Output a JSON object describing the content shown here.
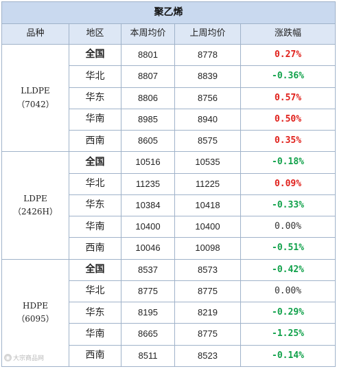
{
  "table": {
    "title": "聚乙烯",
    "headers": [
      "品种",
      "地区",
      "本周均价",
      "上周均价",
      "涨跌幅"
    ],
    "groups": [
      {
        "name": "LLDPE",
        "code": "（7042）",
        "rows": [
          {
            "region": "全国",
            "bold": true,
            "this_week": "8801",
            "last_week": "8778",
            "change": "0.27%",
            "trend": "up"
          },
          {
            "region": "华北",
            "bold": false,
            "this_week": "8807",
            "last_week": "8839",
            "change": "-0.36%",
            "trend": "down"
          },
          {
            "region": "华东",
            "bold": false,
            "this_week": "8806",
            "last_week": "8756",
            "change": "0.57%",
            "trend": "up"
          },
          {
            "region": "华南",
            "bold": false,
            "this_week": "8985",
            "last_week": "8940",
            "change": "0.50%",
            "trend": "up"
          },
          {
            "region": "西南",
            "bold": false,
            "this_week": "8605",
            "last_week": "8575",
            "change": "0.35%",
            "trend": "up"
          }
        ]
      },
      {
        "name": "LDPE",
        "code": "（2426H）",
        "rows": [
          {
            "region": "全国",
            "bold": true,
            "this_week": "10516",
            "last_week": "10535",
            "change": "-0.18%",
            "trend": "down"
          },
          {
            "region": "华北",
            "bold": false,
            "this_week": "11235",
            "last_week": "11225",
            "change": "0.09%",
            "trend": "up"
          },
          {
            "region": "华东",
            "bold": false,
            "this_week": "10384",
            "last_week": "10418",
            "change": "-0.33%",
            "trend": "down"
          },
          {
            "region": "华南",
            "bold": false,
            "this_week": "10400",
            "last_week": "10400",
            "change": "0.00%",
            "trend": "flat"
          },
          {
            "region": "西南",
            "bold": false,
            "this_week": "10046",
            "last_week": "10098",
            "change": "-0.51%",
            "trend": "down"
          }
        ]
      },
      {
        "name": "HDPE",
        "code": "（6095）",
        "rows": [
          {
            "region": "全国",
            "bold": true,
            "this_week": "8537",
            "last_week": "8573",
            "change": "-0.42%",
            "trend": "down"
          },
          {
            "region": "华北",
            "bold": false,
            "this_week": "8775",
            "last_week": "8775",
            "change": "0.00%",
            "trend": "flat"
          },
          {
            "region": "华东",
            "bold": false,
            "this_week": "8195",
            "last_week": "8219",
            "change": "-0.29%",
            "trend": "down"
          },
          {
            "region": "华南",
            "bold": false,
            "this_week": "8665",
            "last_week": "8775",
            "change": "-1.25%",
            "trend": "down"
          },
          {
            "region": "西南",
            "bold": false,
            "this_week": "8511",
            "last_week": "8523",
            "change": "-0.14%",
            "trend": "down"
          }
        ]
      }
    ]
  },
  "colors": {
    "header_bg": "#c9d9ef",
    "subheader_bg": "#dde7f5",
    "border": "#9fb2c9",
    "up": "#e0201b",
    "down": "#10a14a"
  },
  "watermark": {
    "icon": "camera-icon",
    "text": "大宗商品网"
  }
}
